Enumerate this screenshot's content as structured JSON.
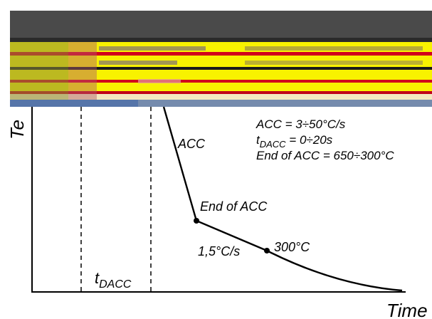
{
  "axes": {
    "y_label": "Te",
    "x_label": "Time"
  },
  "annotations": {
    "acc_segment": "ACC",
    "end_of_acc_point": "End of ACC",
    "slow_rate": "1,5°C/s",
    "temp_300": "300°C",
    "tdacc_base": "t",
    "tdacc_sub": "DACC"
  },
  "params": {
    "line1": "ACC = 3÷50°C/s",
    "line2_base": "t",
    "line2_sub": "DACC",
    "line2_rest": " = 0÷20s",
    "line3": "End of ACC = 650÷300°C"
  },
  "colors": {
    "curve": "#000000",
    "banner_dark": "#4a4a4a",
    "banner_yellow": "#f8f200",
    "banner_red": "#d1001c"
  }
}
